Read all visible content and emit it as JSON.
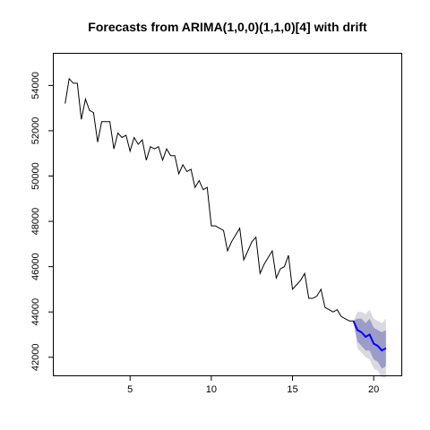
{
  "chart_data": {
    "type": "line",
    "title": "Forecasts from ARIMA(1,0,0)(1,1,0)[4] with drift",
    "xlabel": "",
    "ylabel": "",
    "xlim": [
      0.3,
      21.7
    ],
    "ylim": [
      41200,
      55400
    ],
    "x_ticks": [
      5,
      10,
      15,
      20
    ],
    "y_ticks": [
      42000,
      44000,
      46000,
      48000,
      50000,
      52000,
      54000
    ],
    "grid": false,
    "series": [
      {
        "x": [
          1.0,
          1.25,
          1.5,
          1.75,
          2.0,
          2.25,
          2.5,
          2.75,
          3.0,
          3.25,
          3.5,
          3.75,
          4.0,
          4.25,
          4.5,
          4.75,
          5.0,
          5.25,
          5.5,
          5.75,
          6.0,
          6.25,
          6.5,
          6.75,
          7.0,
          7.25,
          7.5,
          7.75,
          8.0,
          8.25,
          8.5,
          8.75,
          9.0,
          9.25,
          9.5,
          9.75,
          10.0,
          10.25,
          10.5,
          10.75,
          11.0,
          11.25,
          11.5,
          11.75,
          12.0,
          12.25,
          12.5,
          12.75,
          13.0,
          13.25,
          13.5,
          13.75,
          14.0,
          14.25,
          14.5,
          14.75,
          15.0,
          15.25,
          15.5,
          15.75,
          16.0,
          16.25,
          16.5,
          16.75,
          17.0,
          17.25,
          17.5,
          17.75,
          18.0,
          18.25,
          18.5,
          18.75
        ],
        "values": [
          53200,
          54300,
          54100,
          54100,
          52500,
          53400,
          52900,
          52800,
          51500,
          52400,
          52400,
          52400,
          51200,
          51900,
          51700,
          51800,
          51100,
          51700,
          51400,
          51600,
          50700,
          51300,
          51200,
          51300,
          50700,
          51200,
          50900,
          50900,
          50100,
          50500,
          50200,
          50300,
          49500,
          49800,
          49400,
          49500,
          47800,
          47800,
          47700,
          47600,
          46700,
          47100,
          47400,
          47700,
          46300,
          46700,
          47100,
          47300,
          45700,
          46100,
          46400,
          46700,
          45500,
          45900,
          46000,
          46500,
          45000,
          45200,
          45400,
          45700,
          44600,
          44600,
          44700,
          45000,
          44200,
          44100,
          44000,
          44100,
          43800,
          43700,
          43600,
          43600
        ]
      },
      {
        "x": [
          18.75,
          19.0,
          19.25,
          19.5,
          19.75,
          20.0,
          20.25,
          20.5,
          20.75
        ],
        "values": [
          43600,
          43200,
          43100,
          42900,
          43000,
          42600,
          42500,
          42300,
          42400
        ],
        "lower80": [
          43600,
          42700,
          42500,
          42300,
          42300,
          41900,
          41800,
          41500,
          41600
        ],
        "upper80": [
          43600,
          43700,
          43700,
          43500,
          43700,
          43300,
          43200,
          43100,
          43200
        ],
        "lower95": [
          43600,
          42400,
          42200,
          42000,
          41900,
          41500,
          41400,
          41100,
          41100
        ],
        "upper95": [
          43600,
          44000,
          44000,
          43900,
          44100,
          43700,
          43600,
          43500,
          43700
        ]
      }
    ],
    "colors": {
      "history": "#000000",
      "forecast": "#0000ff",
      "band95": "#d9d9e0",
      "band80": "#9c9cc8"
    }
  }
}
